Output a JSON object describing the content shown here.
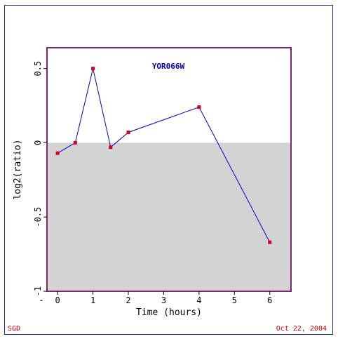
{
  "chart_data": {
    "type": "line",
    "title": "YOR066W",
    "xlabel": "Time (hours)",
    "ylabel": "log2(ratio)",
    "xlim": [
      -0.3,
      6.6
    ],
    "ylim": [
      -1,
      0.64
    ],
    "xticks": [
      0,
      1,
      2,
      3,
      4,
      5,
      6
    ],
    "xtick_labels": [
      "0",
      "1",
      "2",
      "3",
      "4",
      "5",
      "6"
    ],
    "yticks": [
      0.5,
      0,
      -0.5,
      -1
    ],
    "ytick_labels": [
      "0.5",
      "0",
      "-0.5",
      "-1"
    ],
    "x_minus_label": "-",
    "grid": false,
    "series": [
      {
        "x": [
          0,
          0.5,
          1,
          1.5,
          2,
          4,
          6
        ],
        "values": [
          -0.07,
          0.0,
          0.5,
          -0.03,
          0.07,
          0.24,
          -0.67
        ]
      }
    ],
    "negative_region_fill": "#d3d3d3",
    "line_color": "#0000cc",
    "marker_color": "#cc0022",
    "frame_color": "#7a2a6a",
    "title_color": "#0000aa"
  },
  "footer": {
    "left_text": "SGD",
    "right_text": "Oct 22, 2004"
  }
}
